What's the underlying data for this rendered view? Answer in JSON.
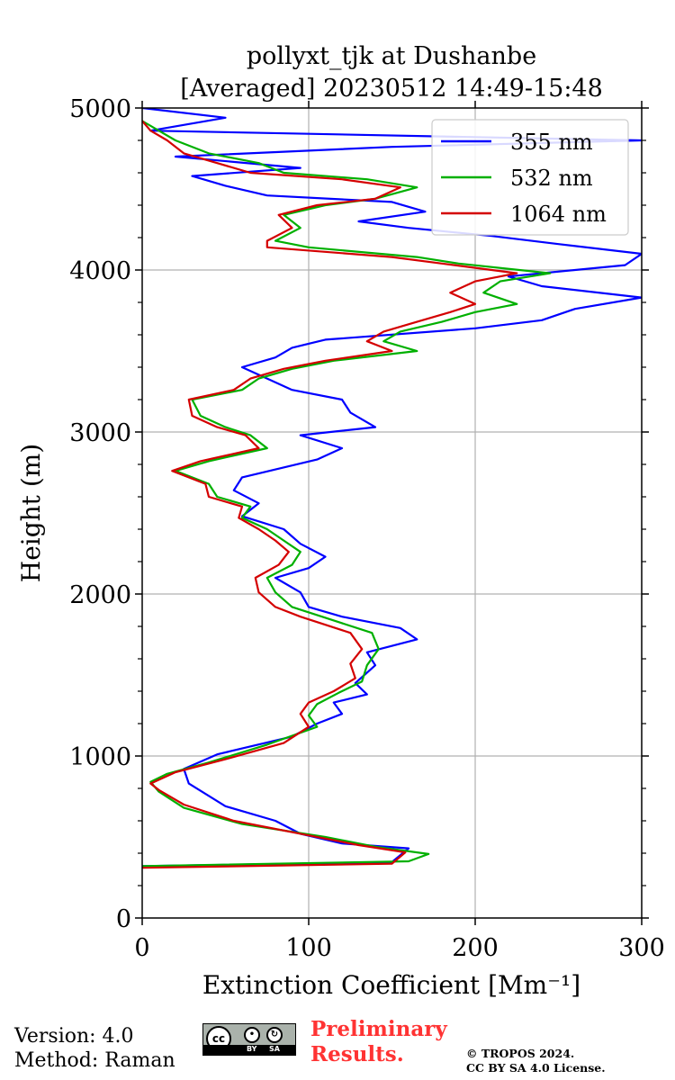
{
  "footer": {
    "version": "Version: 4.0",
    "method": "Method: Raman",
    "preliminary_line1": "Preliminary",
    "preliminary_line2": "Results.",
    "copyright_line1": "© TROPOS 2024.",
    "copyright_line2": "CC BY SA 4.0 License.",
    "license_badge": {
      "icon": "cc-by-sa-icon",
      "cc_text": "cc",
      "by_text": "BY",
      "sa_text": "SA"
    }
  },
  "chart_data": {
    "type": "line",
    "title_line1": "pollyxt_tjk at Dushanbe",
    "title_line2": "[Averaged] 20230512 14:49-15:48",
    "xlabel": "Extinction Coefficient [Mm⁻¹]",
    "ylabel": "Height (m)",
    "xlim": [
      0,
      300
    ],
    "ylim": [
      0,
      5000
    ],
    "xticks": [
      0,
      100,
      200,
      300
    ],
    "yticks": [
      0,
      1000,
      2000,
      3000,
      4000,
      5000
    ],
    "grid": true,
    "legend_position": "top-right",
    "orientation": "profile (extinction on x, height on y)",
    "series": [
      {
        "name": "355 nm",
        "color": "#0000ff",
        "points": [
          [
            0,
            320
          ],
          [
            150,
            345
          ],
          [
            160,
            430
          ],
          [
            120,
            460
          ],
          [
            95,
            520
          ],
          [
            80,
            600
          ],
          [
            50,
            690
          ],
          [
            28,
            830
          ],
          [
            25,
            920
          ],
          [
            45,
            1010
          ],
          [
            90,
            1120
          ],
          [
            105,
            1200
          ],
          [
            120,
            1260
          ],
          [
            115,
            1330
          ],
          [
            135,
            1380
          ],
          [
            128,
            1450
          ],
          [
            140,
            1560
          ],
          [
            135,
            1640
          ],
          [
            165,
            1720
          ],
          [
            155,
            1790
          ],
          [
            120,
            1860
          ],
          [
            100,
            1920
          ],
          [
            95,
            2010
          ],
          [
            80,
            2100
          ],
          [
            100,
            2160
          ],
          [
            110,
            2230
          ],
          [
            95,
            2310
          ],
          [
            85,
            2400
          ],
          [
            60,
            2480
          ],
          [
            70,
            2560
          ],
          [
            55,
            2640
          ],
          [
            60,
            2720
          ],
          [
            105,
            2830
          ],
          [
            120,
            2900
          ],
          [
            95,
            2980
          ],
          [
            140,
            3030
          ],
          [
            125,
            3120
          ],
          [
            120,
            3200
          ],
          [
            90,
            3260
          ],
          [
            75,
            3330
          ],
          [
            60,
            3400
          ],
          [
            80,
            3460
          ],
          [
            90,
            3520
          ],
          [
            110,
            3570
          ],
          [
            200,
            3640
          ],
          [
            240,
            3690
          ],
          [
            260,
            3760
          ],
          [
            300,
            3830
          ],
          [
            240,
            3900
          ],
          [
            220,
            3960
          ],
          [
            290,
            4030
          ],
          [
            300,
            4100
          ],
          [
            250,
            4160
          ],
          [
            210,
            4210
          ],
          [
            160,
            4260
          ],
          [
            130,
            4300
          ],
          [
            170,
            4360
          ],
          [
            150,
            4420
          ],
          [
            75,
            4460
          ],
          [
            50,
            4520
          ],
          [
            30,
            4580
          ],
          [
            95,
            4630
          ],
          [
            20,
            4700
          ],
          [
            150,
            4760
          ],
          [
            300,
            4800
          ],
          [
            5,
            4860
          ],
          [
            50,
            4940
          ],
          [
            0,
            5000
          ]
        ]
      },
      {
        "name": "532 nm",
        "color": "#00b000",
        "points": [
          [
            0,
            320
          ],
          [
            160,
            350
          ],
          [
            172,
            395
          ],
          [
            140,
            440
          ],
          [
            110,
            500
          ],
          [
            60,
            580
          ],
          [
            25,
            680
          ],
          [
            10,
            780
          ],
          [
            5,
            840
          ],
          [
            15,
            890
          ],
          [
            40,
            960
          ],
          [
            75,
            1070
          ],
          [
            105,
            1180
          ],
          [
            100,
            1250
          ],
          [
            105,
            1320
          ],
          [
            118,
            1390
          ],
          [
            132,
            1460
          ],
          [
            135,
            1560
          ],
          [
            142,
            1660
          ],
          [
            138,
            1760
          ],
          [
            108,
            1860
          ],
          [
            90,
            1920
          ],
          [
            80,
            2010
          ],
          [
            75,
            2100
          ],
          [
            90,
            2180
          ],
          [
            95,
            2260
          ],
          [
            85,
            2330
          ],
          [
            75,
            2400
          ],
          [
            60,
            2470
          ],
          [
            65,
            2540
          ],
          [
            45,
            2600
          ],
          [
            40,
            2680
          ],
          [
            20,
            2760
          ],
          [
            40,
            2820
          ],
          [
            75,
            2900
          ],
          [
            65,
            2980
          ],
          [
            50,
            3030
          ],
          [
            35,
            3100
          ],
          [
            30,
            3200
          ],
          [
            60,
            3260
          ],
          [
            70,
            3330
          ],
          [
            90,
            3390
          ],
          [
            115,
            3440
          ],
          [
            165,
            3500
          ],
          [
            145,
            3560
          ],
          [
            155,
            3620
          ],
          [
            180,
            3680
          ],
          [
            200,
            3740
          ],
          [
            225,
            3790
          ],
          [
            205,
            3860
          ],
          [
            215,
            3930
          ],
          [
            245,
            3980
          ],
          [
            190,
            4040
          ],
          [
            165,
            4080
          ],
          [
            100,
            4140
          ],
          [
            80,
            4180
          ],
          [
            95,
            4260
          ],
          [
            85,
            4340
          ],
          [
            110,
            4400
          ],
          [
            140,
            4440
          ],
          [
            165,
            4510
          ],
          [
            135,
            4560
          ],
          [
            85,
            4600
          ],
          [
            70,
            4660
          ],
          [
            40,
            4720
          ],
          [
            20,
            4800
          ],
          [
            10,
            4860
          ],
          [
            0,
            4920
          ]
        ]
      },
      {
        "name": "1064 nm",
        "color": "#d40000",
        "points": [
          [
            0,
            310
          ],
          [
            150,
            335
          ],
          [
            158,
            405
          ],
          [
            130,
            450
          ],
          [
            100,
            510
          ],
          [
            55,
            600
          ],
          [
            25,
            700
          ],
          [
            10,
            790
          ],
          [
            5,
            830
          ],
          [
            20,
            900
          ],
          [
            50,
            980
          ],
          [
            85,
            1080
          ],
          [
            100,
            1180
          ],
          [
            95,
            1260
          ],
          [
            100,
            1330
          ],
          [
            115,
            1400
          ],
          [
            128,
            1480
          ],
          [
            125,
            1570
          ],
          [
            132,
            1660
          ],
          [
            125,
            1760
          ],
          [
            95,
            1860
          ],
          [
            80,
            1920
          ],
          [
            70,
            2010
          ],
          [
            68,
            2100
          ],
          [
            82,
            2180
          ],
          [
            88,
            2260
          ],
          [
            80,
            2330
          ],
          [
            70,
            2400
          ],
          [
            58,
            2470
          ],
          [
            60,
            2540
          ],
          [
            40,
            2600
          ],
          [
            38,
            2680
          ],
          [
            18,
            2760
          ],
          [
            35,
            2820
          ],
          [
            70,
            2900
          ],
          [
            62,
            2980
          ],
          [
            45,
            3030
          ],
          [
            30,
            3100
          ],
          [
            28,
            3200
          ],
          [
            55,
            3260
          ],
          [
            65,
            3330
          ],
          [
            85,
            3390
          ],
          [
            110,
            3440
          ],
          [
            150,
            3500
          ],
          [
            135,
            3560
          ],
          [
            145,
            3620
          ],
          [
            165,
            3680
          ],
          [
            185,
            3740
          ],
          [
            200,
            3790
          ],
          [
            185,
            3860
          ],
          [
            200,
            3930
          ],
          [
            225,
            3980
          ],
          [
            180,
            4040
          ],
          [
            150,
            4080
          ],
          [
            75,
            4140
          ],
          [
            75,
            4180
          ],
          [
            90,
            4260
          ],
          [
            82,
            4340
          ],
          [
            105,
            4400
          ],
          [
            140,
            4440
          ],
          [
            155,
            4510
          ],
          [
            120,
            4560
          ],
          [
            65,
            4600
          ],
          [
            45,
            4660
          ],
          [
            25,
            4720
          ],
          [
            15,
            4800
          ],
          [
            5,
            4860
          ],
          [
            0,
            4920
          ]
        ]
      }
    ]
  }
}
